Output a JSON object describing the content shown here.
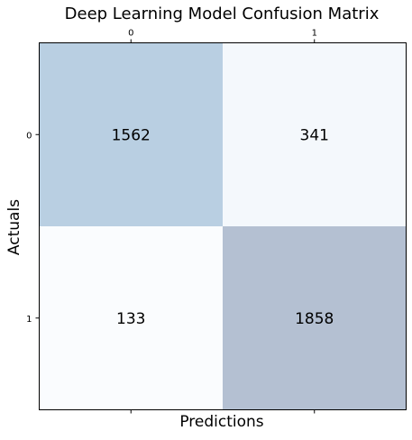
{
  "chart_data": {
    "type": "heatmap",
    "title": "Deep Learning Model Confusion Matrix",
    "xlabel": "Predictions",
    "ylabel": "Actuals",
    "x_categories": [
      "0",
      "1"
    ],
    "y_categories": [
      "0",
      "1"
    ],
    "values": [
      [
        1562,
        341
      ],
      [
        133,
        1858
      ]
    ],
    "x_tick_position": "top",
    "colors": {
      "cells": [
        [
          "#b9cfe2",
          "#f4f8fc"
        ],
        [
          "#fafcfe",
          "#b4c0d2"
        ]
      ],
      "text": "#000000",
      "frame": "#000000"
    },
    "grid": false,
    "legend": "none"
  }
}
